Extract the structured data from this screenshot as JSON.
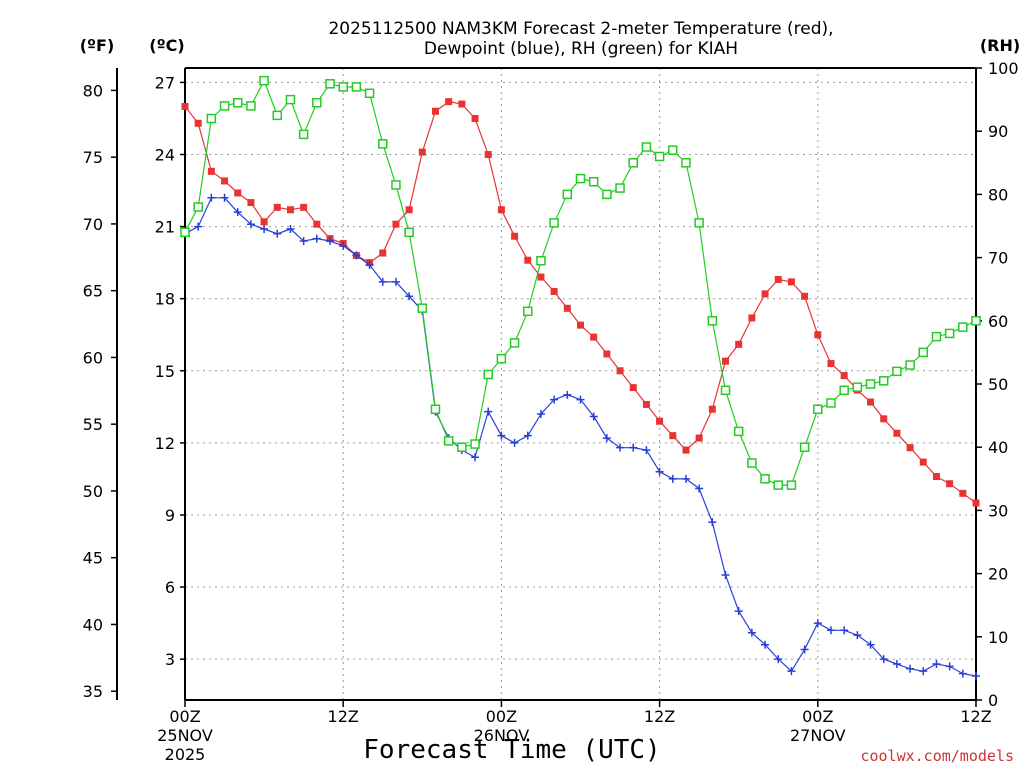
{
  "chart_data": {
    "type": "line",
    "title_line1": "2025112500 NAM3KM Forecast 2-meter Temperature (red),",
    "title_line2": "Dewpoint (blue), RH (green) for KIAH",
    "xlabel": "Forecast Time (UTC)",
    "credit": "coolwx.com/models",
    "left_outer_axis": {
      "label": "(ºF)",
      "ticks": [
        35,
        40,
        45,
        50,
        55,
        60,
        65,
        70,
        75,
        80
      ]
    },
    "left_inner_axis": {
      "label": "(ºC)",
      "ticks": [
        3,
        6,
        9,
        12,
        15,
        18,
        21,
        24,
        27
      ]
    },
    "right_axis": {
      "label": "(RH)",
      "ticks": [
        0,
        10,
        20,
        30,
        40,
        50,
        60,
        70,
        80,
        90,
        100
      ]
    },
    "x_ticks": [
      {
        "hour": 0,
        "label": "00Z",
        "sub1": "25NOV",
        "sub2": "2025"
      },
      {
        "hour": 12,
        "label": "12Z",
        "sub1": "",
        "sub2": ""
      },
      {
        "hour": 24,
        "label": "00Z",
        "sub1": "26NOV",
        "sub2": ""
      },
      {
        "hour": 36,
        "label": "12Z",
        "sub1": "",
        "sub2": ""
      },
      {
        "hour": 48,
        "label": "00Z",
        "sub1": "27NOV",
        "sub2": ""
      },
      {
        "hour": 60,
        "label": "12Z",
        "sub1": "",
        "sub2": ""
      }
    ],
    "xlim": [
      0,
      60
    ],
    "ylim_celsius": [
      1.3,
      27.6
    ],
    "ylim_rh": [
      0,
      100
    ],
    "series": [
      {
        "name": "2-meter Temperature",
        "units": "°C",
        "color": "#e83333",
        "marker": "filled-square",
        "values": [
          26.0,
          25.3,
          23.3,
          22.9,
          22.4,
          22.0,
          21.2,
          21.8,
          21.7,
          21.8,
          21.1,
          20.5,
          20.3,
          19.8,
          19.5,
          19.9,
          21.1,
          21.7,
          24.1,
          25.8,
          26.2,
          26.1,
          25.5,
          24.0,
          21.7,
          20.6,
          19.6,
          18.9,
          18.3,
          17.6,
          16.9,
          16.4,
          15.7,
          15.0,
          14.3,
          13.6,
          12.9,
          12.3,
          11.7,
          12.2,
          13.4,
          15.4,
          16.1,
          17.2,
          18.2,
          18.8,
          18.7,
          18.1,
          16.5,
          15.3,
          14.8,
          14.2,
          13.7,
          13.0,
          12.4,
          11.8,
          11.2,
          10.6,
          10.3,
          9.9,
          9.5
        ]
      },
      {
        "name": "Dewpoint",
        "units": "°C",
        "color": "#2840d8",
        "marker": "plus",
        "values": [
          20.7,
          21.0,
          22.2,
          22.2,
          21.6,
          21.1,
          20.9,
          20.7,
          20.9,
          20.4,
          20.5,
          20.4,
          20.2,
          19.8,
          19.4,
          18.7,
          18.7,
          18.1,
          17.5,
          13.3,
          12.2,
          11.7,
          11.4,
          13.3,
          12.3,
          12.0,
          12.3,
          13.2,
          13.8,
          14.0,
          13.8,
          13.1,
          12.2,
          11.8,
          11.8,
          11.7,
          10.8,
          10.5,
          10.5,
          10.1,
          8.7,
          6.5,
          5.0,
          4.1,
          3.6,
          3.0,
          2.5,
          3.4,
          4.5,
          4.2,
          4.2,
          4.0,
          3.6,
          3.0,
          2.8,
          2.6,
          2.5,
          2.8,
          2.7,
          2.4,
          2.3
        ]
      },
      {
        "name": "RH",
        "units": "%",
        "color": "#22cc22",
        "marker": "open-square",
        "values": [
          74,
          78,
          92,
          94,
          94.5,
          94,
          98,
          92.5,
          95,
          89.5,
          94.5,
          97.5,
          97,
          97,
          96,
          88,
          81.5,
          74,
          62,
          46,
          41,
          40,
          40.5,
          51.5,
          54,
          56.5,
          61.5,
          69.5,
          75.5,
          80,
          82.5,
          82,
          80,
          81,
          85,
          87.5,
          86,
          87,
          85,
          75.5,
          60,
          49,
          42.5,
          37.5,
          35,
          34,
          34,
          40,
          46,
          47,
          49,
          49.5,
          50,
          50.5,
          52,
          53,
          55,
          57.5,
          58,
          59,
          60
        ]
      }
    ]
  }
}
